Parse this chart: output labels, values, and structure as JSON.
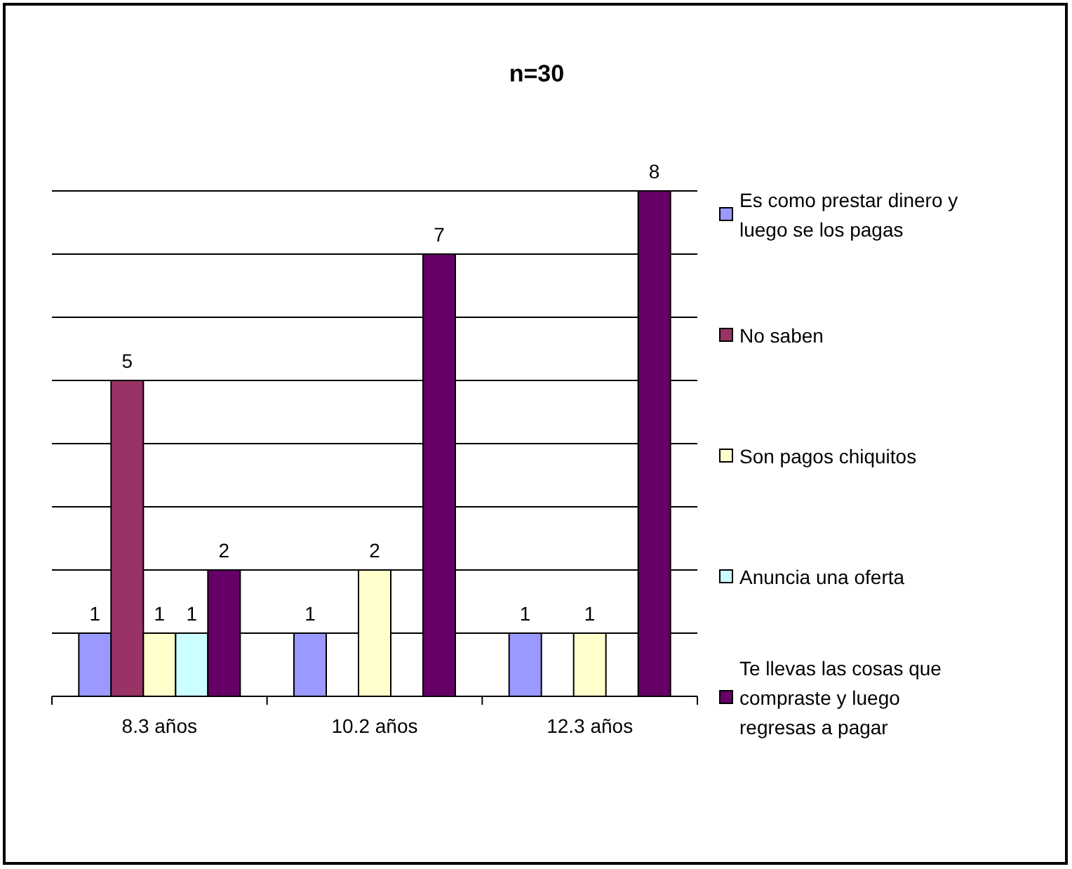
{
  "chart_data": {
    "type": "bar",
    "title": "n=30",
    "categories": [
      "8.3 años",
      "10.2 años",
      "12.3 años"
    ],
    "series": [
      {
        "name": "Es como prestar dinero y luego se los pagas",
        "color": "#9999ff",
        "values": [
          1,
          1,
          1
        ]
      },
      {
        "name": "No saben",
        "color": "#993366",
        "values": [
          5,
          null,
          null
        ]
      },
      {
        "name": "Son pagos chiquitos",
        "color": "#ffffcc",
        "values": [
          1,
          2,
          1
        ]
      },
      {
        "name": "Anuncia una oferta",
        "color": "#ccffff",
        "values": [
          1,
          null,
          null
        ]
      },
      {
        "name": "Te llevas las cosas que compraste y luego regresas a pagar",
        "color": "#660066",
        "values": [
          2,
          7,
          8
        ]
      }
    ],
    "ylim": [
      0,
      8
    ],
    "yticks": [
      {
        "value": 0,
        "label": null
      },
      {
        "value": 1,
        "label": null
      },
      {
        "value": 2,
        "label": null
      },
      {
        "value": 3,
        "label": null
      },
      {
        "value": 4,
        "label": null
      },
      {
        "value": 5,
        "label": null
      },
      {
        "value": 6,
        "label": null
      },
      {
        "value": 7,
        "label": null
      },
      {
        "value": 8,
        "label": null
      }
    ],
    "tick_labels": "x",
    "grid": "y",
    "legend": "right",
    "data_labels": true
  }
}
